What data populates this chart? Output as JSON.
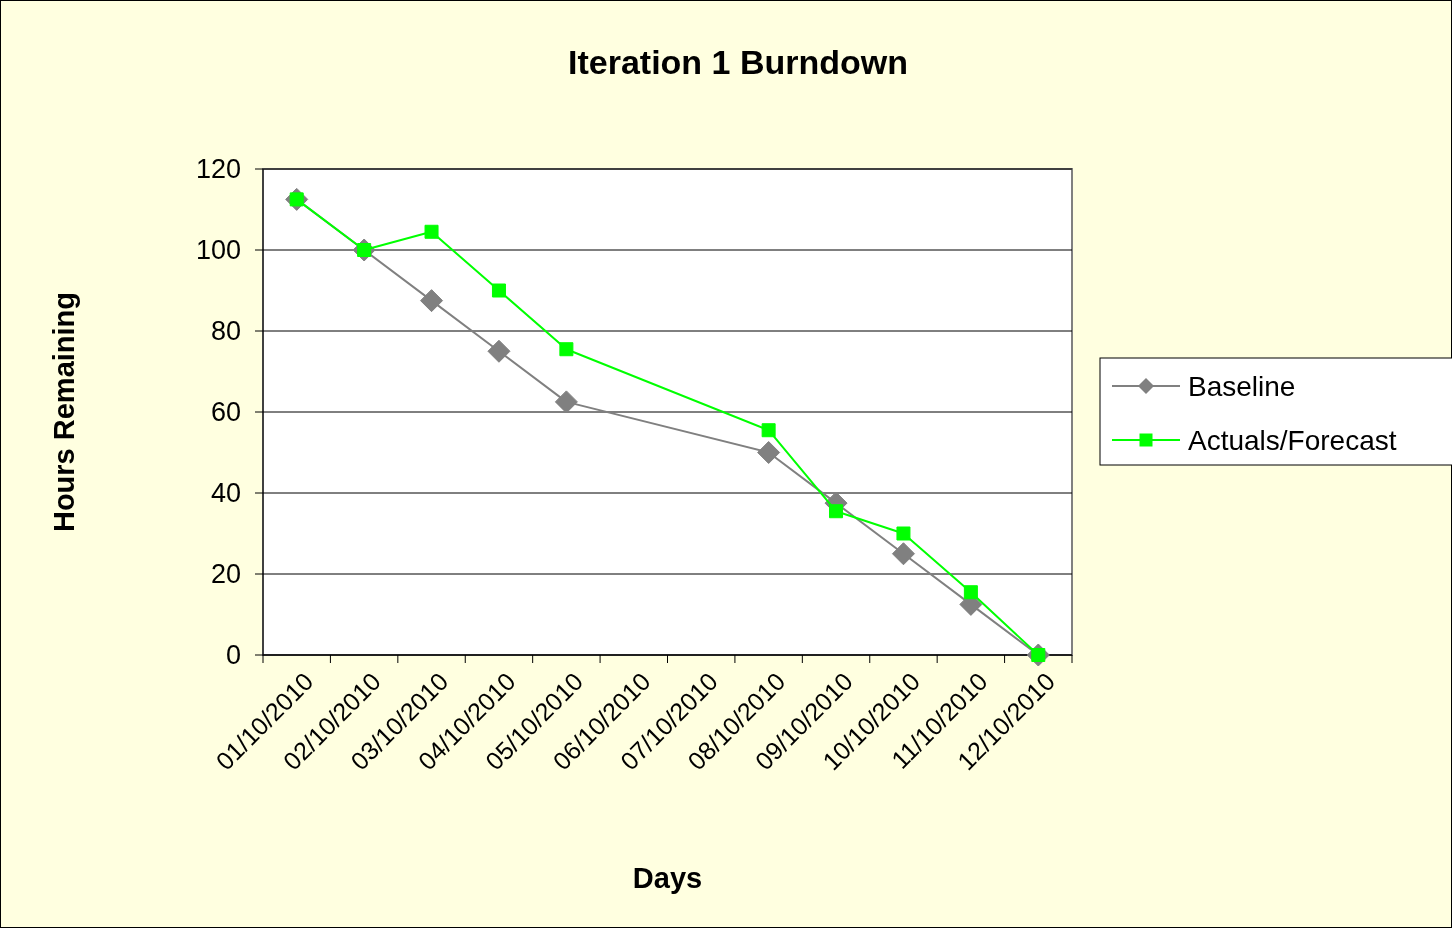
{
  "chart_data": {
    "type": "line",
    "title": "Iteration 1 Burndown",
    "xlabel": "Days",
    "ylabel": "Hours Remaining",
    "categories": [
      "01/10/2010",
      "02/10/2010",
      "03/10/2010",
      "04/10/2010",
      "05/10/2010",
      "06/10/2010",
      "07/10/2010",
      "08/10/2010",
      "09/10/2010",
      "10/10/2010",
      "11/10/2010",
      "12/10/2010"
    ],
    "series": [
      {
        "name": "Baseline",
        "color": "#808080",
        "marker": "diamond",
        "values": [
          112.5,
          100,
          87.5,
          75,
          62.5,
          null,
          null,
          50,
          37.5,
          25,
          12.5,
          0
        ]
      },
      {
        "name": "Actuals/Forecast",
        "color": "#00ff00",
        "marker": "square",
        "values": [
          112.5,
          100,
          104.5,
          90,
          75.5,
          null,
          null,
          55.5,
          35.5,
          30,
          15.5,
          0
        ]
      }
    ],
    "ylim": [
      0,
      120
    ],
    "yticks": [
      0,
      20,
      40,
      60,
      80,
      100,
      120
    ],
    "grid": "y",
    "legend": "right",
    "line_style": "solid"
  }
}
